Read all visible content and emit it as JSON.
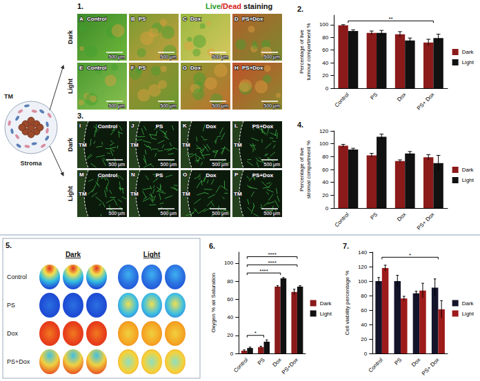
{
  "chart_data": [
    {
      "type": "bar",
      "title": "2.",
      "y_label": "Percentage of live tumour compartment %",
      "categories": [
        "Control",
        "PS",
        "Dox",
        "PS+ Dox"
      ],
      "series": [
        {
          "name": "Dark",
          "color": "#8b1a1a",
          "values": [
            99,
            87,
            85,
            72
          ],
          "errors": [
            1,
            3,
            4,
            5
          ]
        },
        {
          "name": "Light",
          "color": "#111111",
          "values": [
            90,
            87,
            75,
            79
          ],
          "errors": [
            2,
            4,
            4,
            6
          ]
        }
      ],
      "ylim": [
        0,
        115
      ],
      "yticks": [
        0,
        20,
        40,
        60,
        80,
        100
      ],
      "grid": false,
      "legend": "right",
      "significance": [
        {
          "from": "Control",
          "to": "PS+ Dox",
          "y": 106,
          "label": "**"
        }
      ]
    },
    {
      "type": "bar",
      "title": "4.",
      "y_label": "Percentage of live stromal compartment %",
      "categories": [
        "Control",
        "PS",
        "Dox",
        "PS+ Dox"
      ],
      "series": [
        {
          "name": "Dark",
          "color": "#8b1a1a",
          "values": [
            97,
            82,
            73,
            79
          ],
          "errors": [
            2,
            3,
            2,
            4
          ]
        },
        {
          "name": "Light",
          "color": "#111111",
          "values": [
            91,
            111,
            85,
            70
          ],
          "errors": [
            2,
            4,
            3,
            12
          ]
        }
      ],
      "ylim": [
        0,
        120
      ],
      "yticks": [
        0,
        20,
        40,
        60,
        80,
        100,
        120
      ],
      "grid": false,
      "legend": "right"
    },
    {
      "type": "bar",
      "title": "6.",
      "y_label": "Oxygen % air Saturation",
      "categories": [
        "Control",
        "PS",
        "Dox",
        "PS+Dox"
      ],
      "series": [
        {
          "name": "Dark",
          "color": "#8b1a1a",
          "values": [
            3,
            7,
            74,
            68
          ],
          "errors": [
            1,
            1,
            1,
            3
          ]
        },
        {
          "name": "Light",
          "color": "#111111",
          "values": [
            6,
            13,
            83,
            74
          ],
          "errors": [
            1,
            2,
            1,
            1
          ]
        }
      ],
      "ylim": [
        0,
        112
      ],
      "yticks": [
        0,
        20,
        40,
        60,
        80,
        100
      ],
      "grid": false,
      "legend": "right",
      "significance": [
        {
          "from": "Control",
          "to": "PS",
          "y": 20,
          "label": "*"
        },
        {
          "from": "Control",
          "to": "Dox",
          "y": 89,
          "label": "****"
        },
        {
          "from": "Control",
          "to": "PS+Dox",
          "y": 98,
          "label": "****"
        },
        {
          "from": "Control",
          "to": "PS+Dox",
          "y": 107,
          "label": "****"
        }
      ]
    },
    {
      "type": "bar",
      "title": "7.",
      "y_label": "Cell viability percentage %",
      "categories": [
        "Control",
        "PS",
        "Dox",
        "PS+ Dox"
      ],
      "series": [
        {
          "name": "Dark",
          "color": "#14142b",
          "values": [
            100,
            100,
            83,
            91
          ],
          "errors": [
            5,
            8,
            3,
            12
          ]
        },
        {
          "name": "Light",
          "color": "#9e1b1b",
          "values": [
            118,
            76,
            87,
            61
          ],
          "errors": [
            4,
            3,
            10,
            12
          ]
        }
      ],
      "ylim": [
        0,
        140
      ],
      "yticks": [
        0,
        20,
        40,
        60,
        80,
        100,
        120,
        140
      ],
      "grid": false,
      "legend": "right",
      "significance": [
        {
          "from": "Control",
          "to": "PS+ Dox",
          "y": 133,
          "label": "*"
        }
      ]
    }
  ],
  "figure": {
    "schematic": {
      "tumour": "TM",
      "stroma": "Stroma"
    },
    "panel_1": {
      "number": "1.",
      "header": [
        {
          "text": "Live",
          "color": "#1f9a1f"
        },
        {
          "text": "/Dead",
          "color": "#d62020"
        },
        {
          "text": " staining",
          "color": "#111111"
        }
      ],
      "rows": [
        "Dark",
        "Light"
      ],
      "tiles": [
        {
          "letter": "A",
          "label": "Control"
        },
        {
          "letter": "B",
          "label": "PS"
        },
        {
          "letter": "C",
          "label": "Dox"
        },
        {
          "letter": "D",
          "label": "PS+Dox"
        },
        {
          "letter": "E",
          "label": "Control"
        },
        {
          "letter": "F",
          "label": "PS"
        },
        {
          "letter": "G",
          "label": "Dox"
        },
        {
          "letter": "H",
          "label": "PS+Dox"
        }
      ],
      "scale_bar": "500 μm"
    },
    "panel_3": {
      "number": "3.",
      "rows": [
        "Dark",
        "Light"
      ],
      "region": "TM",
      "tiles": [
        {
          "letter": "I",
          "label": "Control"
        },
        {
          "letter": "J",
          "label": "PS"
        },
        {
          "letter": "K",
          "label": "Dox"
        },
        {
          "letter": "L",
          "label": "PS+Dox"
        },
        {
          "letter": "M",
          "label": "Control"
        },
        {
          "letter": "N",
          "label": "PS"
        },
        {
          "letter": "O",
          "label": "Dox"
        },
        {
          "letter": "P",
          "label": "PS+Dox"
        }
      ],
      "scale_bar": "500 μm"
    },
    "panel_5": {
      "number": "5.",
      "columns": [
        "Dark",
        "Light"
      ],
      "rows": [
        "Control",
        "PS",
        "Dox",
        "PS+Dox"
      ]
    }
  }
}
